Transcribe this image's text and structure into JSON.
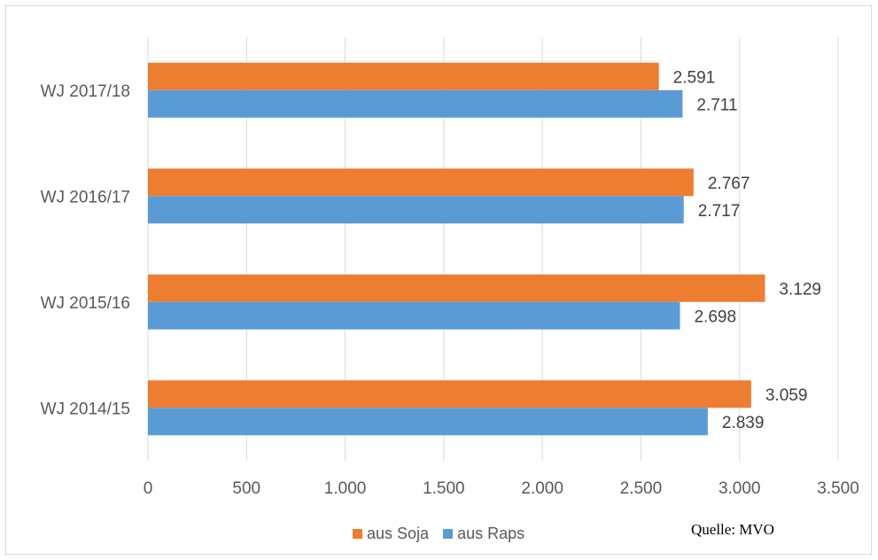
{
  "chart_data": {
    "type": "bar",
    "orientation": "horizontal",
    "categories": [
      "WJ 2017/18",
      "WJ 2016/17",
      "WJ 2015/16",
      "WJ 2014/15"
    ],
    "series": [
      {
        "name": "aus Soja",
        "color": "#ED7D31",
        "values": [
          2591,
          2767,
          3129,
          3059
        ],
        "labels": [
          "2.591",
          "2.767",
          "3.129",
          "3.059"
        ]
      },
      {
        "name": "aus Raps",
        "color": "#5B9BD5",
        "values": [
          2711,
          2717,
          2698,
          2839
        ],
        "labels": [
          "2.711",
          "2.717",
          "2.698",
          "2.839"
        ]
      }
    ],
    "xlim": [
      0,
      3500
    ],
    "xticks": [
      0,
      500,
      1000,
      1500,
      2000,
      2500,
      3000,
      3500
    ],
    "xtick_labels": [
      "0",
      "500",
      "1.000",
      "1.500",
      "2.000",
      "2.500",
      "3.000",
      "3.500"
    ],
    "grid": "vertical",
    "legend_position": "bottom"
  },
  "source": "Quelle: MVO"
}
